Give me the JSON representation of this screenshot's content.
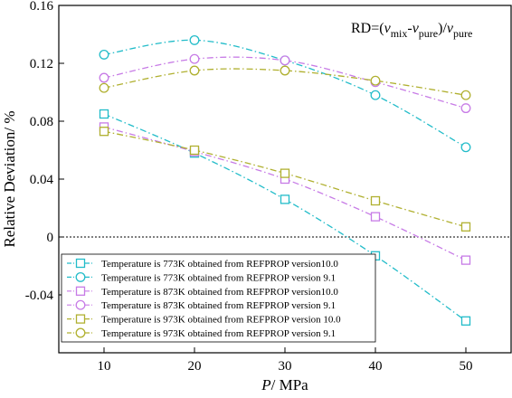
{
  "chart_data": {
    "type": "line",
    "x": [
      10,
      20,
      30,
      40,
      50
    ],
    "xlabel": {
      "italic": "P",
      "rest": "/ MPa"
    },
    "ylabel": "Relative Deviation/ %",
    "xlim": [
      5,
      55
    ],
    "ylim": [
      -0.08,
      0.16
    ],
    "xticks": [
      10,
      20,
      30,
      40,
      50
    ],
    "yticks": [
      -0.04,
      0,
      0.04,
      0.08,
      0.12,
      0.16
    ],
    "ytick_labels": [
      "-0.04",
      "0",
      "0.04",
      "0.08",
      "0.12",
      "0.16"
    ],
    "grid": false,
    "zero_line": true,
    "annotation": {
      "prefix": "RD=(",
      "v1": "ν",
      "sub1": "mix",
      "minus": "-",
      "v2": "ν",
      "sub2": "pure",
      "mid": ")/",
      "v3": "ν",
      "sub3": "pure"
    },
    "legend_position": "bottom-left",
    "series": [
      {
        "name": "Temperature is 773K obtained from REFPROP version10.0",
        "color": "#22bcc9",
        "marker": "square",
        "values": [
          0.085,
          0.058,
          0.026,
          -0.013,
          -0.058
        ]
      },
      {
        "name": "Temperature is 773K obtained from REFPROP version 9.1",
        "color": "#22bcc9",
        "marker": "circle",
        "values": [
          0.126,
          0.136,
          0.122,
          0.098,
          0.062
        ]
      },
      {
        "name": "Temperature is 873K obtained from REFPROP version10.0",
        "color": "#c77be6",
        "marker": "square",
        "values": [
          0.076,
          0.059,
          0.04,
          0.014,
          -0.016
        ]
      },
      {
        "name": "Temperature is 873K obtained from REFPROP version 9.1",
        "color": "#c77be6",
        "marker": "circle",
        "values": [
          0.11,
          0.123,
          0.122,
          0.107,
          0.089
        ]
      },
      {
        "name": "Temperature is 973K obtained from REFPROP version 10.0",
        "color": "#b0b030",
        "marker": "square",
        "values": [
          0.073,
          0.06,
          0.044,
          0.025,
          0.007
        ]
      },
      {
        "name": "Temperature is 973K obtained from REFPROP version 9.1",
        "color": "#b0b030",
        "marker": "circle",
        "values": [
          0.103,
          0.115,
          0.115,
          0.108,
          0.098
        ]
      }
    ]
  }
}
